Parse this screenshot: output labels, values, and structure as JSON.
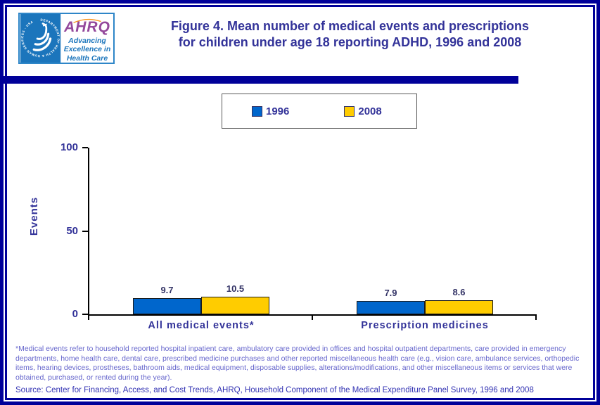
{
  "header": {
    "logo": {
      "seal_text": "DEPARTMENT OF HEALTH & HUMAN SERVICES - USA",
      "org": "AHRQ",
      "tagline_lines": [
        "Advancing",
        "Excellence in",
        "Health Care"
      ]
    },
    "title_line1": "Figure 4. Mean number of medical events and prescriptions",
    "title_line2": "for children under age 18 reporting ADHD, 1996 and 2008"
  },
  "chart_data": {
    "type": "bar",
    "title": "Figure 4. Mean number of medical events and prescriptions for children under age 18 reporting ADHD, 1996 and 2008",
    "categories": [
      "All medical events*",
      "Prescription medicines"
    ],
    "series": [
      {
        "name": "1996",
        "color": "#0066CC",
        "values": [
          9.7,
          7.9
        ]
      },
      {
        "name": "2008",
        "color": "#FFCC00",
        "values": [
          10.5,
          8.6
        ]
      }
    ],
    "ylabel": "Events",
    "xlabel": "",
    "ylim": [
      0,
      100
    ],
    "yticks": [
      0,
      50,
      100
    ],
    "grid": false,
    "legend_position": "top-center",
    "bar_value_labels": true
  },
  "footnote": "*Medical events refer to household reported hospital inpatient care, ambulatory care provided in offices and hospital outpatient departments, care provided in emergency departments, home health care, dental care, prescribed medicine purchases and other reported miscellaneous health care (e.g., vision care, ambulance services, orthopedic items, hearing devices, prostheses, bathroom aids, medical equipment, disposable supplies, alterations/modifications, and other miscellaneous items or services that were obtained, purchased, or rented during the year).",
  "source": "Source: Center for Financing, Access, and Cost Trends, AHRQ, Household Component of the Medical Expenditure Panel Survey, 1996 and 2008",
  "colors": {
    "frame_navy": "#000099",
    "title_text": "#333399",
    "axis_text": "#333399",
    "value_label_text": "#333366",
    "footnote_text": "#6666CC",
    "source_text": "#3333B3",
    "bar_1996": "#0066CC",
    "bar_2008": "#FFCC00",
    "logo_blue": "#1B75BC",
    "logo_purple": "#94489B",
    "logo_arc_orange": "#F7941D"
  }
}
